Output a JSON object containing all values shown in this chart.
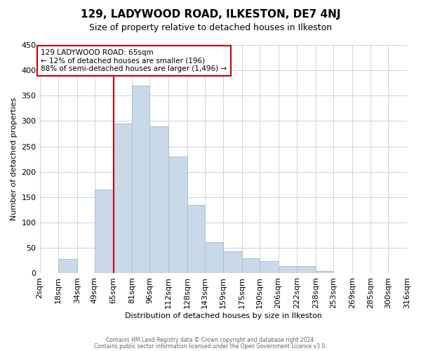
{
  "title": "129, LADYWOOD ROAD, ILKESTON, DE7 4NJ",
  "subtitle": "Size of property relative to detached houses in Ilkeston",
  "xlabel": "Distribution of detached houses by size in Ilkeston",
  "ylabel": "Number of detached properties",
  "bar_color": "#c9d9ea",
  "bar_edge_color": "#a8c0d6",
  "vline_color": "#cc0000",
  "annotation_text": "129 LADYWOOD ROAD: 65sqm\n← 12% of detached houses are smaller (196)\n88% of semi-detached houses are larger (1,496) →",
  "annotation_box_color": "#ffffff",
  "annotation_box_edge": "#cc0000",
  "bin_edges": [
    2,
    18,
    34,
    49,
    65,
    81,
    96,
    112,
    128,
    143,
    159,
    175,
    190,
    206,
    222,
    238,
    253,
    269,
    285,
    300,
    316
  ],
  "tick_labels": [
    "2sqm",
    "18sqm",
    "34sqm",
    "49sqm",
    "65sqm",
    "81sqm",
    "96sqm",
    "112sqm",
    "128sqm",
    "143sqm",
    "159sqm",
    "175sqm",
    "190sqm",
    "206sqm",
    "222sqm",
    "238sqm",
    "253sqm",
    "269sqm",
    "285sqm",
    "300sqm",
    "316sqm"
  ],
  "values": [
    0,
    28,
    0,
    165,
    295,
    370,
    290,
    230,
    135,
    62,
    44,
    30,
    24,
    15,
    15,
    5,
    0,
    0,
    0,
    0
  ],
  "vline_bin_index": 4,
  "ylim": [
    0,
    450
  ],
  "yticks": [
    0,
    50,
    100,
    150,
    200,
    250,
    300,
    350,
    400,
    450
  ],
  "footer_line1": "Contains HM Land Registry data © Crown copyright and database right 2024.",
  "footer_line2": "Contains public sector information licensed under the Open Government Licence v3.0.",
  "background_color": "#ffffff",
  "grid_color": "#c8d4e0"
}
